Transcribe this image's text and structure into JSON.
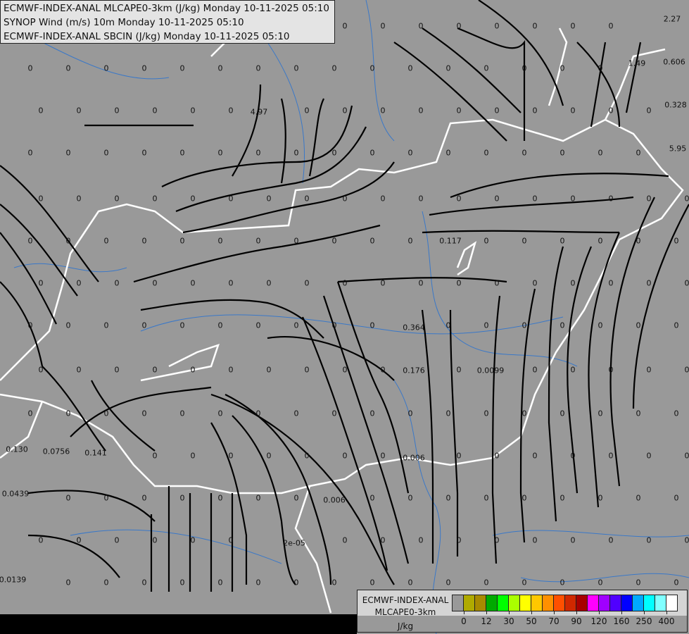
{
  "header": {
    "line1": "ECMWF-INDEX-ANAL MLCAPE0-3km (J/kg) Monday 10-11-2025 05:10",
    "line2": "SYNOP Wind (m/s) 10m Monday 10-11-2025 05:10",
    "line3": "ECMWF-INDEX-ANAL SBCIN (J/kg) Monday 10-11-2025 05:10"
  },
  "legend": {
    "title1": "ECMWF-INDEX-ANAL",
    "title2": "MLCAPE0-3km",
    "unit": "J/kg",
    "colors": [
      "#999999",
      "#b0aa00",
      "#a88a00",
      "#00aa00",
      "#00ff00",
      "#aaff00",
      "#ffff00",
      "#ffc800",
      "#ff9000",
      "#ff5000",
      "#d02800",
      "#a80000",
      "#ff00ff",
      "#a000ff",
      "#5000ff",
      "#0000ff",
      "#00aaff",
      "#00ffff",
      "#80ffff",
      "#ffffff"
    ],
    "ticks": [
      "0",
      "12",
      "30",
      "50",
      "70",
      "90",
      "120",
      "160",
      "250",
      "400"
    ]
  },
  "map": {
    "zero_label": "0",
    "value_labels": [
      "2.27",
      "1.49",
      "0.606",
      "0.328",
      "5.95",
      "4.97",
      "0.117",
      "0.364",
      "0.176",
      "0.0099",
      "0.130",
      "0.0756",
      "0.141",
      "0.0439",
      "0.006",
      "0.006",
      "2e-05",
      "0.0139"
    ],
    "colors": {
      "background": "#999999",
      "border": "#ffffff",
      "river": "#3a78c8",
      "streamline": "#000000"
    }
  }
}
